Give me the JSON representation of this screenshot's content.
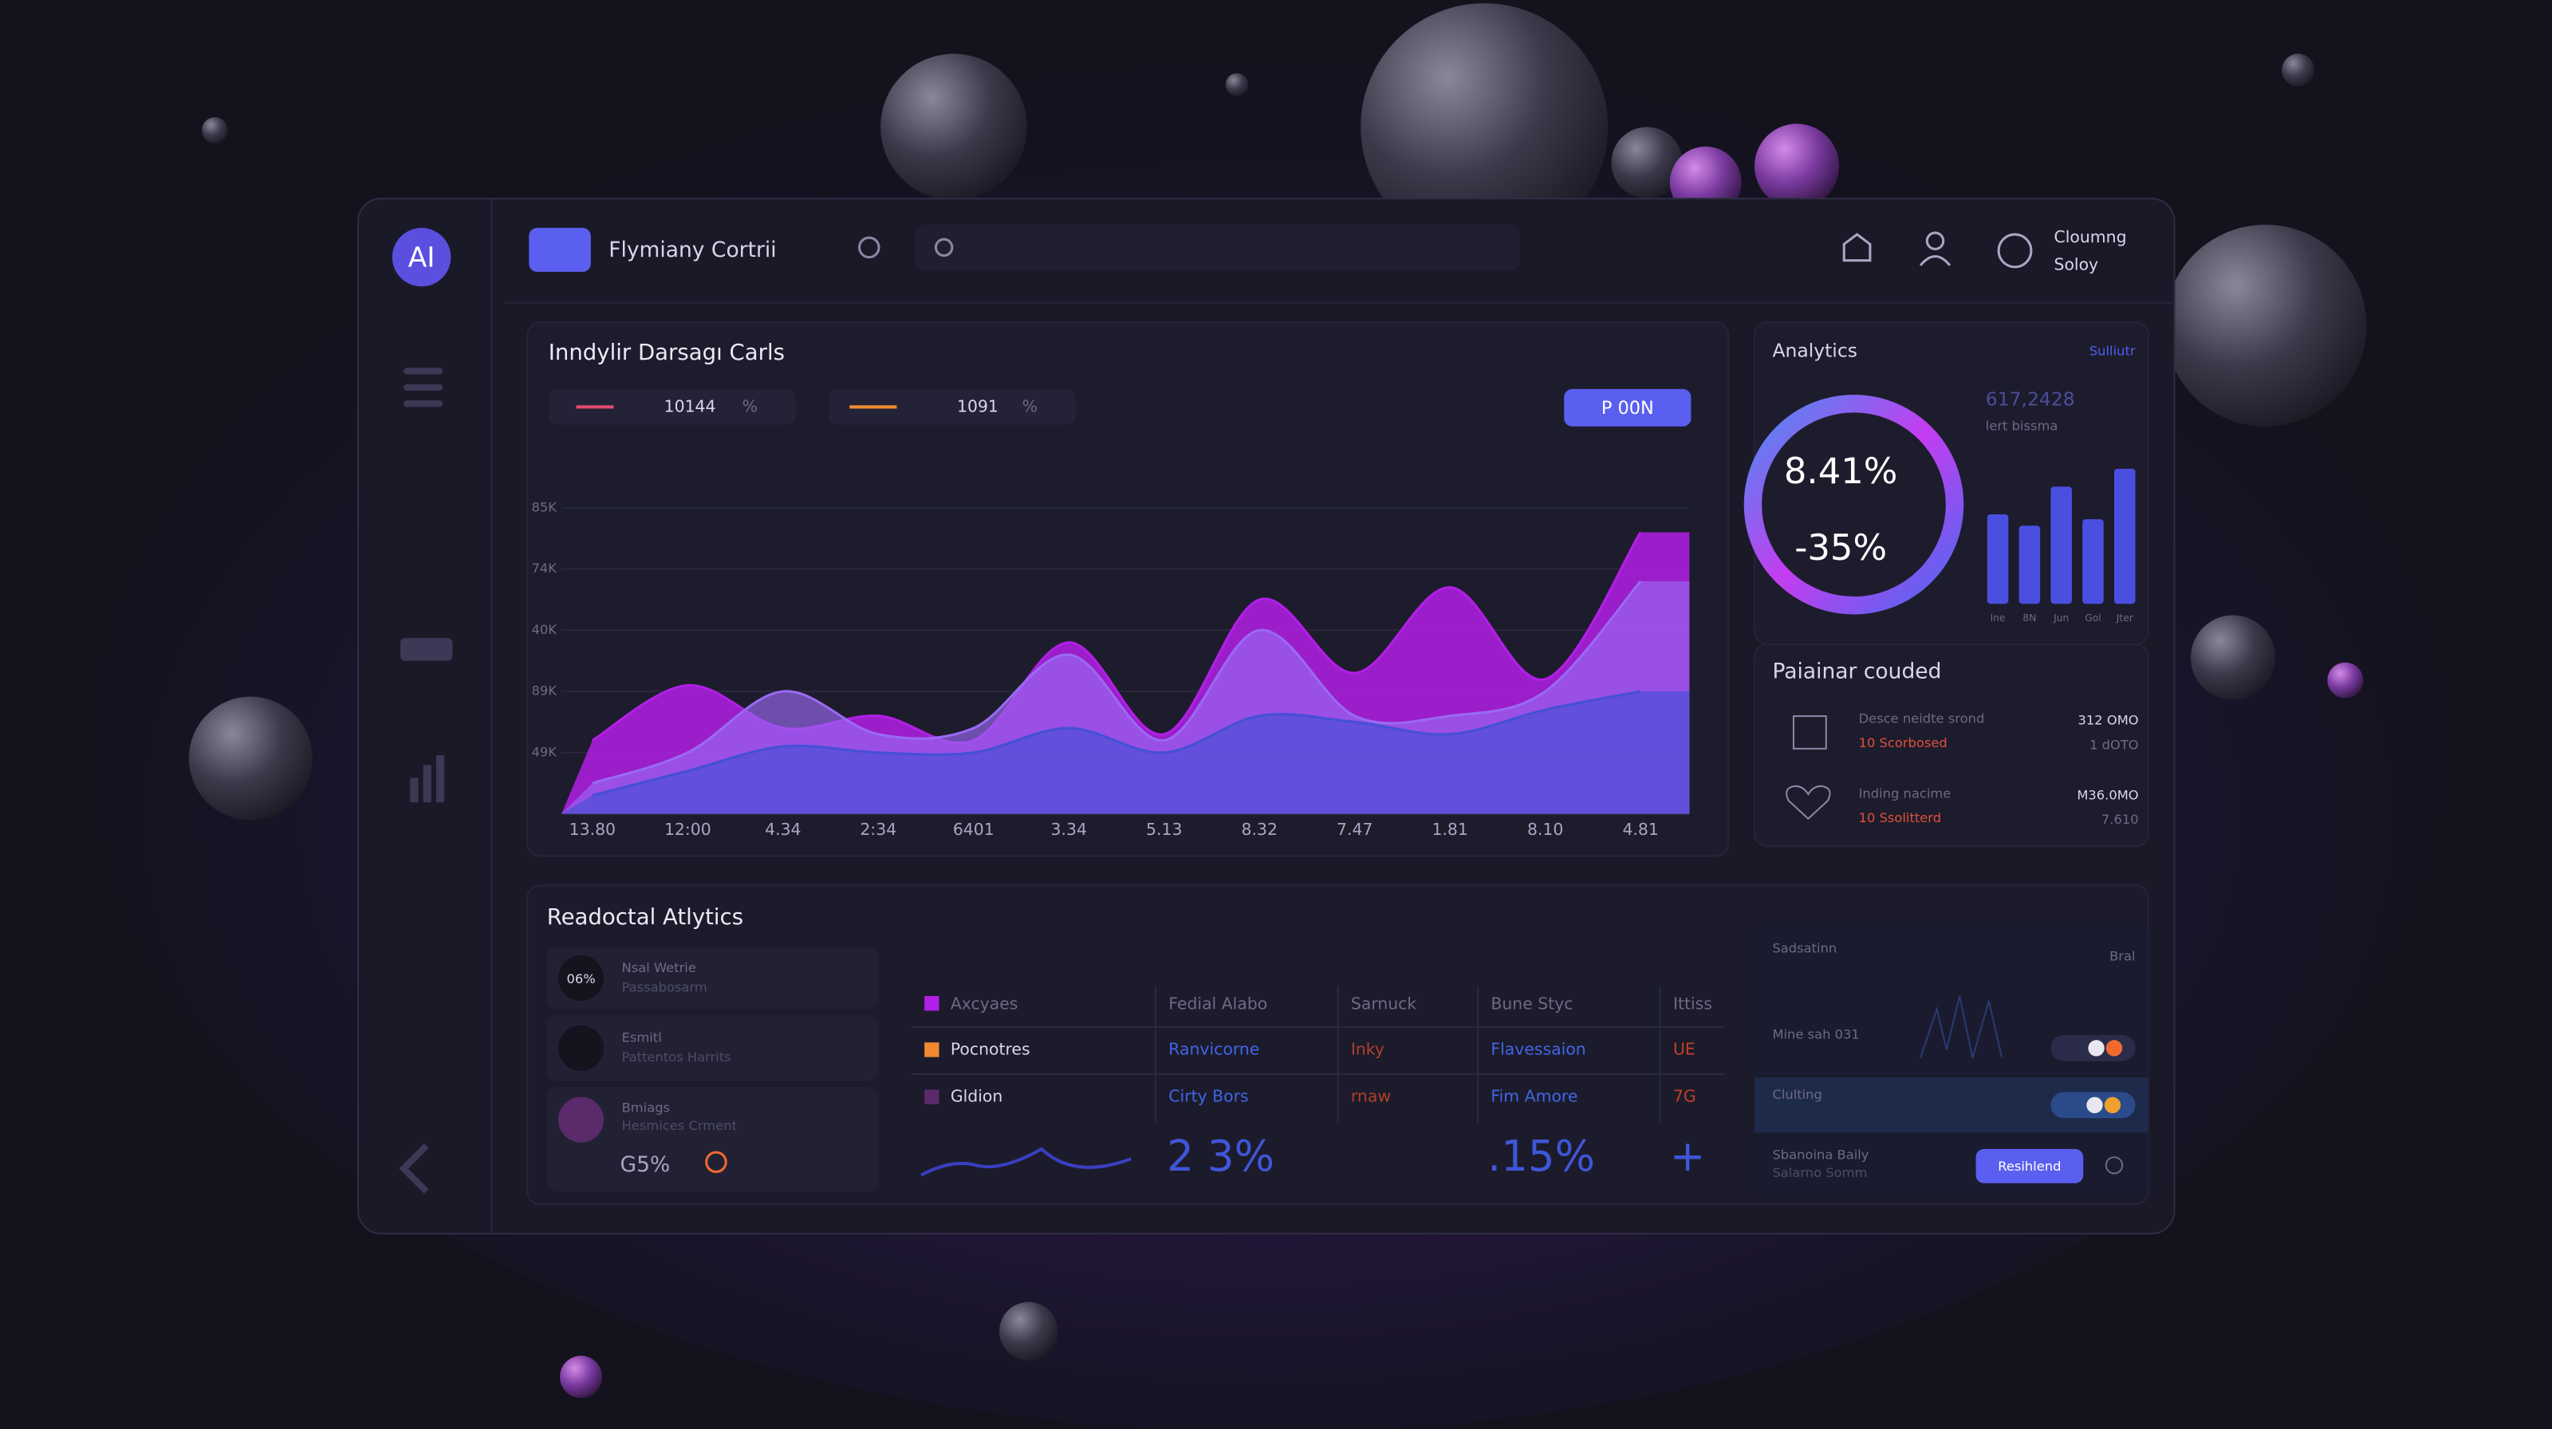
{
  "header": {
    "logo": "AI",
    "app_name": "Flymiany Cortrii",
    "user_line1": "Cloumng",
    "user_line2": "Soloy"
  },
  "chart_data": {
    "type": "area",
    "title": "Inndylir Darsagı Carls",
    "legend": [
      {
        "label": "10144",
        "unit": "%"
      },
      {
        "label": "1091",
        "unit": "%"
      }
    ],
    "button": "P 00N",
    "categories": [
      "13.80",
      "12:00",
      "4.34",
      "2:34",
      "6401",
      "3.34",
      "5.13",
      "8.32",
      "7.47",
      "1.81",
      "8.10",
      "4.81"
    ],
    "series": [
      {
        "color": "#b21fe6",
        "values": [
          1.2,
          2.1,
          1.4,
          1.6,
          1.2,
          2.8,
          1.3,
          3.5,
          2.3,
          3.7,
          2.2,
          4.6
        ]
      },
      {
        "color": "#9a6af2",
        "values": [
          0.5,
          1.0,
          2.0,
          1.3,
          1.4,
          2.6,
          1.2,
          3.0,
          1.6,
          1.6,
          2.0,
          3.8
        ]
      },
      {
        "color": "#4450d6",
        "values": [
          0.3,
          0.7,
          1.1,
          1.0,
          1.0,
          1.4,
          1.0,
          1.6,
          1.5,
          1.3,
          1.7,
          2.0
        ]
      }
    ],
    "ylim": [
      0,
      5
    ],
    "yticks": [
      1,
      2,
      3,
      4,
      5
    ],
    "ytick_labels": [
      "49K",
      "89K",
      "40K",
      "74K",
      "85K"
    ],
    "grid": true
  },
  "analytics": {
    "title": "Analytics",
    "link": "Sulliutr",
    "donut_value": "8.41%",
    "donut_change": "-35%",
    "stat": "617,2428",
    "stat_caption": "lert bissma",
    "bars": {
      "color": "#4b4fe0",
      "labels": [
        "Ine",
        "8N",
        "Jun",
        "Gol",
        "Jter"
      ],
      "values": [
        55,
        48,
        72,
        52,
        83
      ]
    }
  },
  "partner": {
    "title": "Paiainar couded",
    "rows": [
      {
        "name": "Desce neidte srond",
        "sub": "10 Scorbosed",
        "value": "312 OMO",
        "sub_value": "1 dOTO"
      },
      {
        "name": "Inding nacime",
        "sub": "10 Ssolitterd",
        "value": "M36.0MO",
        "sub_value": "7.610"
      }
    ]
  },
  "recent": {
    "title": "Readoctal Atlytics",
    "items": [
      {
        "badge": "06%",
        "name": "Nsal Wetrie",
        "sub": "Passabosarm"
      },
      {
        "name": "Esmitl",
        "sub": "Pattentos Harrits"
      },
      {
        "name": "Bmiags",
        "sub": "Hesmices Crment",
        "value": "G5%"
      }
    ]
  },
  "table": {
    "headers": [
      "Axcyaes",
      "Fedial Alabo",
      "Sarnuck",
      "Bune Styc",
      "Ittiss"
    ],
    "rows": [
      [
        "Pocnotres",
        "Ranvicorne",
        "Inky",
        "Flavessaion",
        "UE"
      ],
      [
        "Gldion",
        "Cirty Bors",
        "rnaw",
        "Fim Amore",
        "7G"
      ]
    ],
    "big_1": "2 3%",
    "big_2": ".15%",
    "big_3": "+"
  },
  "settings": {
    "title": "Sadsatinn",
    "title_right": "Bral",
    "row1": "Mine sah 031",
    "row2": "Clulting",
    "row3": "Sbanoina Baily",
    "row3_sub": "Salarno Somm",
    "button": "Resihlend"
  }
}
